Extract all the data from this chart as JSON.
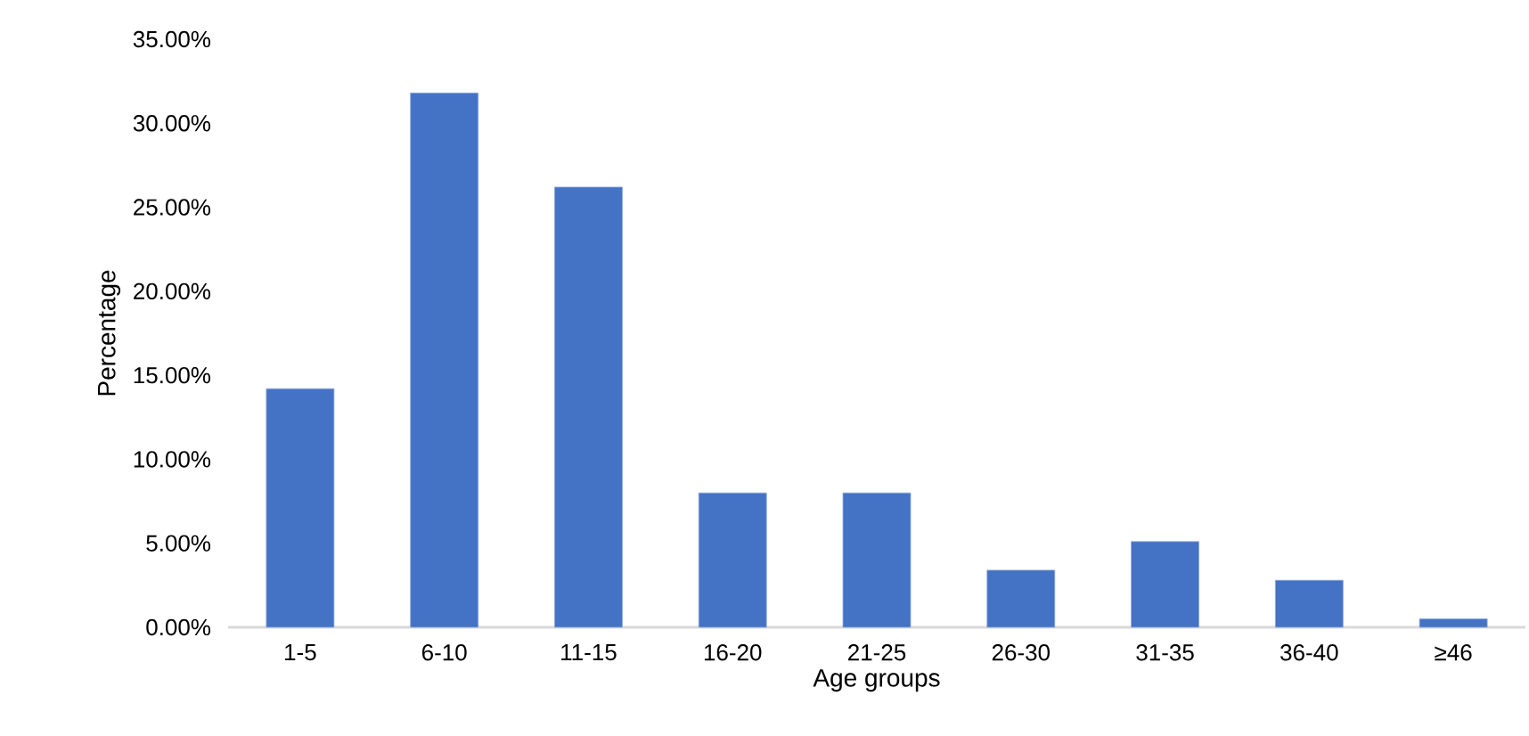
{
  "chart_data": {
    "type": "bar",
    "xlabel": "Age groups",
    "ylabel": "Percentage",
    "categories": [
      "1-5",
      "6-10",
      "11-15",
      "16-20",
      "21-25",
      "26-30",
      "31-35",
      "36-40",
      "≥46"
    ],
    "values": [
      14.2,
      31.8,
      26.2,
      8.0,
      8.0,
      3.4,
      5.1,
      2.8,
      0.5
    ],
    "color": "#4472c4",
    "ylim": [
      0,
      35
    ],
    "yticks": [
      {
        "value": 0,
        "label": "0.00%"
      },
      {
        "value": 5,
        "label": "5.00%"
      },
      {
        "value": 10,
        "label": "10.00%"
      },
      {
        "value": 15,
        "label": "15.00%"
      },
      {
        "value": 20,
        "label": "20.00%"
      },
      {
        "value": 25,
        "label": "25.00%"
      },
      {
        "value": 30,
        "label": "30.00%"
      },
      {
        "value": 35,
        "label": "35.00%"
      }
    ],
    "grid": false
  }
}
